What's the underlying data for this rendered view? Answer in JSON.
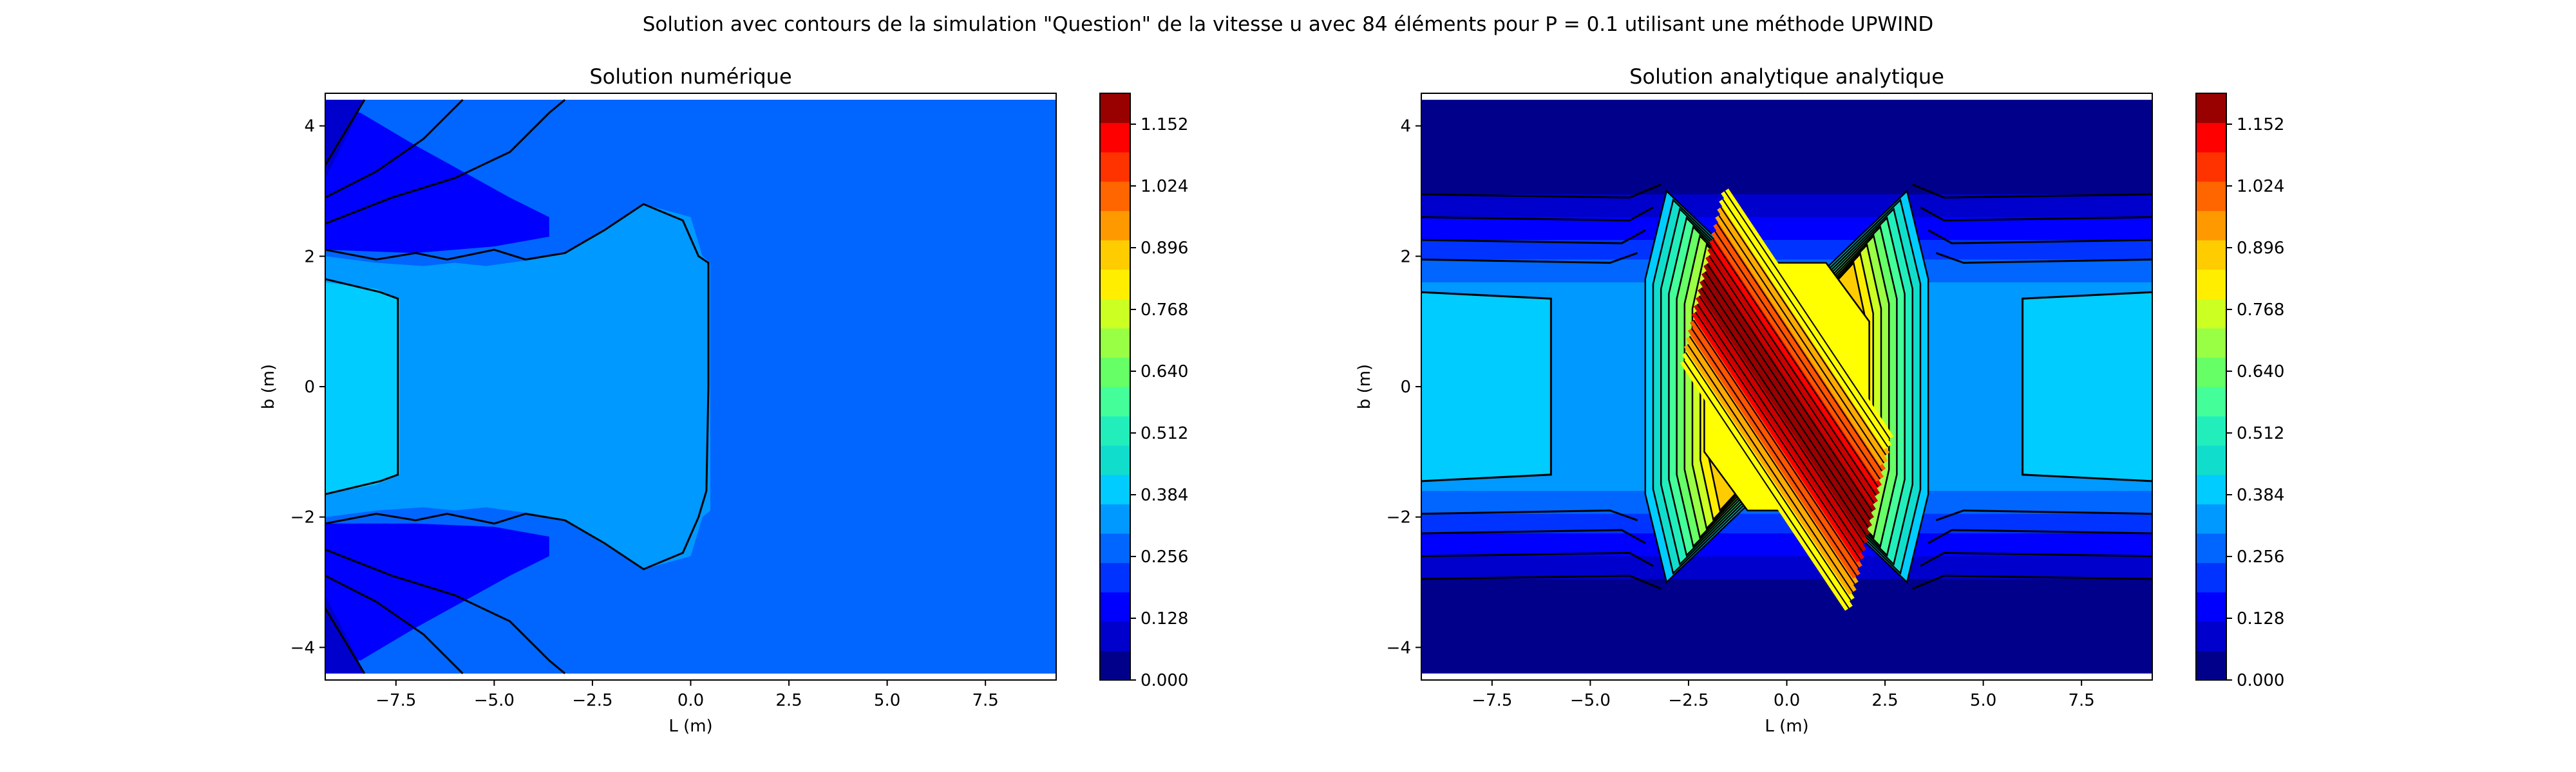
{
  "figure": {
    "suptitle": "Solution avec contours de la simulation \"Question\" de la vitesse u avec 84 éléments pour P = 0.1 utilisant une méthode UPWIND"
  },
  "chart_data": [
    {
      "type": "contour",
      "title": "Solution numérique",
      "xlabel": "L (m)",
      "ylabel": "b (m)",
      "xlim": [
        -9.3,
        9.3
      ],
      "ylim": [
        -4.5,
        4.5
      ],
      "xticks": [
        -7.5,
        -5.0,
        -2.5,
        0.0,
        2.5,
        5.0,
        7.5
      ],
      "xtick_labels": [
        "−7.5",
        "−5.0",
        "−2.5",
        "0.0",
        "2.5",
        "5.0",
        "7.5"
      ],
      "yticks": [
        -4,
        -2,
        0,
        2,
        4
      ],
      "ytick_labels": [
        "−4",
        "−2",
        "0",
        "2",
        "4"
      ],
      "levels": [
        {
          "color": "#0000ff",
          "poly": [
            [
              -9.3,
              -4.4
            ],
            [
              9.3,
              -4.4
            ],
            [
              9.3,
              4.4
            ],
            [
              -9.3,
              4.4
            ]
          ]
        },
        {
          "color": "#0066ff",
          "poly": [
            [
              -9.3,
              4.4
            ],
            [
              -2.5,
              4.4
            ],
            [
              9.3,
              4.4
            ],
            [
              9.3,
              -4.4
            ],
            [
              -2.5,
              -4.4
            ],
            [
              -9.3,
              -4.4
            ],
            [
              -9.3,
              -4.1
            ],
            [
              -8.4,
              -4.2
            ],
            [
              -7.0,
              -3.7
            ],
            [
              -5.8,
              -3.3
            ],
            [
              -4.6,
              -2.9
            ],
            [
              -3.6,
              -2.6
            ],
            [
              -3.6,
              -2.3
            ],
            [
              -5.0,
              -2.15
            ],
            [
              -7.0,
              -2.1
            ],
            [
              -9.3,
              -2.1
            ],
            [
              -9.3,
              2.1
            ],
            [
              -7.0,
              2.05
            ],
            [
              -5.0,
              2.15
            ],
            [
              -3.6,
              2.3
            ],
            [
              -3.6,
              2.6
            ],
            [
              -4.6,
              2.9
            ],
            [
              -5.8,
              3.3
            ],
            [
              -7.0,
              3.7
            ],
            [
              -8.4,
              4.2
            ],
            [
              -9.3,
              4.3
            ]
          ]
        },
        {
          "color": "#0099ff",
          "poly": [
            [
              -9.3,
              2.0
            ],
            [
              -8.0,
              1.9
            ],
            [
              -6.8,
              1.85
            ],
            [
              -6.0,
              1.9
            ],
            [
              -5.2,
              1.85
            ],
            [
              -4.0,
              1.95
            ],
            [
              -3.2,
              2.05
            ],
            [
              -2.0,
              2.5
            ],
            [
              -1.2,
              2.8
            ],
            [
              0.0,
              2.6
            ],
            [
              0.3,
              2.0
            ],
            [
              0.5,
              1.9
            ],
            [
              0.5,
              -1.9
            ],
            [
              0.3,
              -2.0
            ],
            [
              0.0,
              -2.6
            ],
            [
              -1.2,
              -2.8
            ],
            [
              -2.0,
              -2.5
            ],
            [
              -3.2,
              -2.05
            ],
            [
              -4.0,
              -1.95
            ],
            [
              -5.2,
              -1.85
            ],
            [
              -6.0,
              -1.9
            ],
            [
              -6.8,
              -1.85
            ],
            [
              -8.0,
              -1.9
            ],
            [
              -9.3,
              -2.0
            ]
          ]
        },
        {
          "color": "#00ccff",
          "poly": [
            [
              -9.3,
              1.6
            ],
            [
              -8.0,
              1.5
            ],
            [
              -7.4,
              1.35
            ],
            [
              -7.4,
              -1.35
            ],
            [
              -8.0,
              -1.5
            ],
            [
              -9.3,
              -1.65
            ]
          ]
        },
        {
          "color": "#0000cc",
          "poly": [
            [
              -9.3,
              4.4
            ],
            [
              -8.3,
              4.4
            ],
            [
              -8.7,
              3.9
            ],
            [
              -9.3,
              3.2
            ]
          ]
        },
        {
          "color": "#0000cc",
          "poly": [
            [
              -9.3,
              -4.4
            ],
            [
              -8.3,
              -4.4
            ],
            [
              -8.7,
              -3.9
            ],
            [
              -9.3,
              -3.2
            ]
          ]
        }
      ],
      "contour_lines": [
        [
          [
            -9.3,
            2.1
          ],
          [
            -8.0,
            1.95
          ],
          [
            -7.0,
            2.05
          ],
          [
            -6.2,
            1.95
          ],
          [
            -5.0,
            2.1
          ],
          [
            -4.2,
            1.95
          ],
          [
            -3.2,
            2.05
          ],
          [
            -2.2,
            2.4
          ],
          [
            -1.2,
            2.8
          ],
          [
            -0.2,
            2.55
          ],
          [
            0.2,
            2.0
          ],
          [
            0.45,
            1.9
          ],
          [
            0.45,
            0.0
          ],
          [
            0.4,
            -1.6
          ],
          [
            0.2,
            -2.0
          ],
          [
            -0.2,
            -2.55
          ],
          [
            -1.2,
            -2.8
          ],
          [
            -2.2,
            -2.4
          ],
          [
            -3.2,
            -2.05
          ],
          [
            -4.2,
            -1.95
          ],
          [
            -5.0,
            -2.1
          ],
          [
            -6.2,
            -1.95
          ],
          [
            -7.0,
            -2.05
          ],
          [
            -8.0,
            -1.95
          ],
          [
            -9.3,
            -2.1
          ]
        ],
        [
          [
            -9.3,
            1.65
          ],
          [
            -7.9,
            1.45
          ],
          [
            -7.45,
            1.35
          ],
          [
            -7.45,
            -1.35
          ],
          [
            -7.9,
            -1.45
          ],
          [
            -9.3,
            -1.65
          ]
        ],
        [
          [
            -9.3,
            2.9
          ],
          [
            -8.0,
            3.3
          ],
          [
            -6.8,
            3.8
          ],
          [
            -5.8,
            4.4
          ]
        ],
        [
          [
            -9.3,
            2.5
          ],
          [
            -7.6,
            2.9
          ],
          [
            -6.0,
            3.2
          ],
          [
            -4.6,
            3.6
          ],
          [
            -3.6,
            4.2
          ],
          [
            -3.2,
            4.4
          ]
        ],
        [
          [
            -9.3,
            3.4
          ],
          [
            -8.8,
            3.9
          ],
          [
            -8.3,
            4.4
          ]
        ],
        [
          [
            -9.3,
            -2.9
          ],
          [
            -8.0,
            -3.3
          ],
          [
            -6.8,
            -3.8
          ],
          [
            -5.8,
            -4.4
          ]
        ],
        [
          [
            -9.3,
            -2.5
          ],
          [
            -7.6,
            -2.9
          ],
          [
            -6.0,
            -3.2
          ],
          [
            -4.6,
            -3.6
          ],
          [
            -3.6,
            -4.2
          ],
          [
            -3.2,
            -4.4
          ]
        ],
        [
          [
            -9.3,
            -3.4
          ],
          [
            -8.8,
            -3.9
          ],
          [
            -8.3,
            -4.4
          ]
        ]
      ]
    },
    {
      "type": "contour",
      "title": "Solution analytique analytique",
      "xlabel": "L (m)",
      "ylabel": "b (m)",
      "xlim": [
        -9.3,
        9.3
      ],
      "ylim": [
        -4.5,
        4.5
      ],
      "xticks": [
        -7.5,
        -5.0,
        -2.5,
        0.0,
        2.5,
        5.0,
        7.5
      ],
      "xtick_labels": [
        "−7.5",
        "−5.0",
        "−2.5",
        "0.0",
        "2.5",
        "5.0",
        "7.5"
      ],
      "yticks": [
        -4,
        -2,
        0,
        2,
        4
      ],
      "ytick_labels": [
        "−4",
        "−2",
        "0",
        "2",
        "4"
      ],
      "bands": [
        {
          "color": "#00008b",
          "half_height": 4.4
        },
        {
          "color": "#0000cd",
          "half_height": 2.95
        },
        {
          "color": "#0000ff",
          "half_height": 2.6
        },
        {
          "color": "#0033ff",
          "half_height": 2.25
        },
        {
          "color": "#0066ff",
          "half_height": 1.95
        },
        {
          "color": "#0099ff",
          "half_height": 1.6
        }
      ],
      "side_boxes": [
        {
          "color": "#00ccff",
          "poly": [
            [
              -9.3,
              1.45
            ],
            [
              -6.0,
              1.35
            ],
            [
              -6.0,
              -1.35
            ],
            [
              -9.3,
              -1.45
            ]
          ]
        },
        {
          "color": "#00ccff",
          "poly": [
            [
              9.3,
              1.45
            ],
            [
              6.0,
              1.35
            ],
            [
              6.0,
              -1.35
            ],
            [
              9.3,
              -1.45
            ]
          ]
        }
      ],
      "diamond": {
        "rings": 9,
        "outer_left": [
          -3.6,
          3.0
        ],
        "inner_left": [
          -2.0,
          1.9
        ],
        "outer_right": [
          3.6,
          3.0
        ],
        "inner_right": [
          2.0,
          1.9
        ],
        "colors": [
          "#00ccff",
          "#11ddcc",
          "#22eebb",
          "#44ff99",
          "#66ff66",
          "#99ff44",
          "#ccff22",
          "#ffee00",
          "#ffcc00"
        ]
      },
      "core": {
        "poly": [
          [
            -1.2,
            1.9
          ],
          [
            1.0,
            1.9
          ],
          [
            2.1,
            1.0
          ],
          [
            2.1,
            -1.3
          ],
          [
            1.2,
            -1.9
          ],
          [
            -1.0,
            -1.9
          ],
          [
            -2.1,
            -1.0
          ],
          [
            -2.1,
            1.0
          ]
        ],
        "colors": [
          "#ffff00",
          "#ffaa00",
          "#ff5500",
          "#ff0000",
          "#cc0000",
          "#990000"
        ]
      },
      "contour_lines": [
        [
          [
            -9.3,
            2.95
          ],
          [
            -4.0,
            2.9
          ],
          [
            -3.2,
            3.1
          ]
        ],
        [
          [
            -9.3,
            2.6
          ],
          [
            -4.0,
            2.55
          ],
          [
            -3.4,
            2.75
          ]
        ],
        [
          [
            -9.3,
            2.25
          ],
          [
            -4.2,
            2.2
          ],
          [
            -3.6,
            2.4
          ]
        ],
        [
          [
            -9.3,
            1.95
          ],
          [
            -4.5,
            1.9
          ],
          [
            -3.8,
            2.05
          ]
        ],
        [
          [
            -9.3,
            -2.95
          ],
          [
            -4.0,
            -2.9
          ],
          [
            -3.2,
            -3.1
          ]
        ],
        [
          [
            -9.3,
            -2.6
          ],
          [
            -4.0,
            -2.55
          ],
          [
            -3.4,
            -2.75
          ]
        ],
        [
          [
            -9.3,
            -2.25
          ],
          [
            -4.2,
            -2.2
          ],
          [
            -3.6,
            -2.4
          ]
        ],
        [
          [
            -9.3,
            -1.95
          ],
          [
            -4.5,
            -1.9
          ],
          [
            -3.8,
            -2.05
          ]
        ],
        [
          [
            9.3,
            2.95
          ],
          [
            4.0,
            2.9
          ],
          [
            3.2,
            3.1
          ]
        ],
        [
          [
            9.3,
            2.6
          ],
          [
            4.0,
            2.55
          ],
          [
            3.4,
            2.75
          ]
        ],
        [
          [
            9.3,
            2.25
          ],
          [
            4.2,
            2.2
          ],
          [
            3.6,
            2.4
          ]
        ],
        [
          [
            9.3,
            1.95
          ],
          [
            4.5,
            1.9
          ],
          [
            3.8,
            2.05
          ]
        ],
        [
          [
            9.3,
            -2.95
          ],
          [
            4.0,
            -2.9
          ],
          [
            3.2,
            -3.1
          ]
        ],
        [
          [
            9.3,
            -2.6
          ],
          [
            4.0,
            -2.55
          ],
          [
            3.4,
            -2.75
          ]
        ],
        [
          [
            9.3,
            -2.25
          ],
          [
            4.2,
            -2.2
          ],
          [
            3.6,
            -2.4
          ]
        ],
        [
          [
            9.3,
            -1.95
          ],
          [
            4.5,
            -1.9
          ],
          [
            3.8,
            -2.05
          ]
        ],
        [
          [
            -9.3,
            1.45
          ],
          [
            -6.0,
            1.35
          ],
          [
            -6.0,
            -1.35
          ],
          [
            -9.3,
            -1.45
          ]
        ],
        [
          [
            9.3,
            1.45
          ],
          [
            6.0,
            1.35
          ],
          [
            6.0,
            -1.35
          ],
          [
            9.3,
            -1.45
          ]
        ]
      ]
    }
  ],
  "colorbar": {
    "vmin": 0.0,
    "vmax": 1.216,
    "colors": [
      "#00008b",
      "#0000cd",
      "#0000ff",
      "#0033ff",
      "#0066ff",
      "#0099ff",
      "#00ccff",
      "#11ddcc",
      "#22eebb",
      "#44ff99",
      "#66ff66",
      "#99ff44",
      "#ccff22",
      "#ffee00",
      "#ffcc00",
      "#ff9900",
      "#ff6600",
      "#ff3300",
      "#ff0000",
      "#990000"
    ],
    "ticks": [
      0.0,
      0.128,
      0.256,
      0.384,
      0.512,
      0.64,
      0.768,
      0.896,
      1.024,
      1.152
    ],
    "tick_labels": [
      "0.000",
      "0.128",
      "0.256",
      "0.384",
      "0.512",
      "0.640",
      "0.768",
      "0.896",
      "1.024",
      "1.152"
    ]
  }
}
